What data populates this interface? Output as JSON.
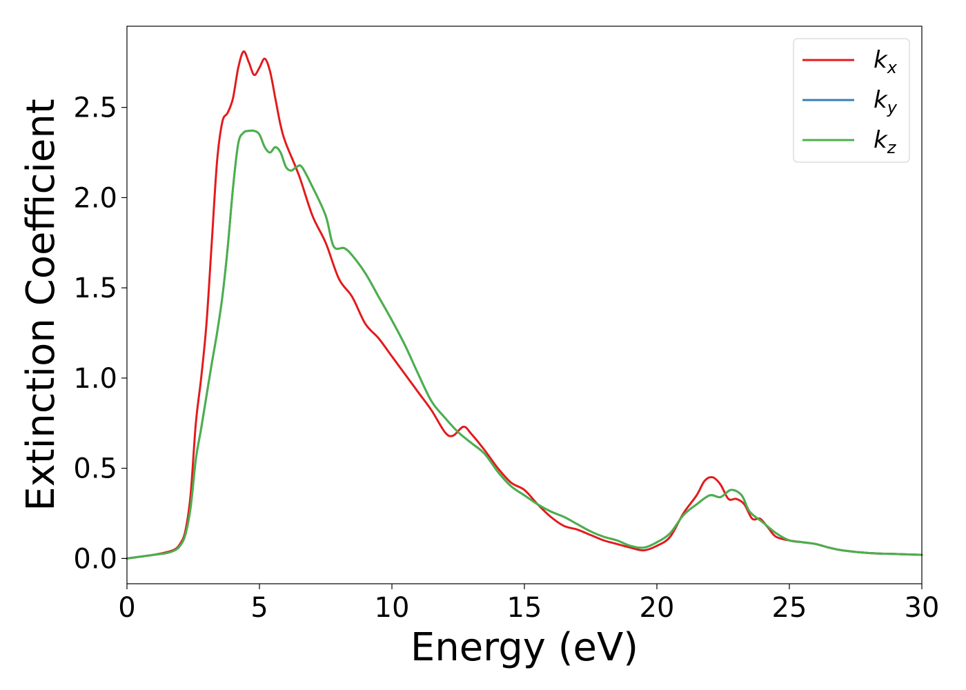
{
  "chart_data": {
    "type": "line",
    "xlabel": "Energy (eV)",
    "ylabel": "Extinction Coefficient",
    "xlim": [
      0,
      30
    ],
    "ylim": [
      -0.14,
      2.95
    ],
    "xticks": [
      "0",
      "5",
      "10",
      "15",
      "20",
      "25",
      "30"
    ],
    "xtick_values": [
      0,
      5,
      10,
      15,
      20,
      25,
      30
    ],
    "yticks": [
      "0.0",
      "0.5",
      "1.0",
      "1.5",
      "2.0",
      "2.5"
    ],
    "ytick_values": [
      0.0,
      0.5,
      1.0,
      1.5,
      2.0,
      2.5
    ],
    "grid": false,
    "legend_position": "top-right",
    "series": [
      {
        "name": "k",
        "subscript": "x",
        "color": "#e31a1c",
        "x": [
          0,
          0.5,
          1,
          1.5,
          1.8,
          2.0,
          2.2,
          2.4,
          2.6,
          2.8,
          3.0,
          3.2,
          3.4,
          3.6,
          3.8,
          4.0,
          4.2,
          4.4,
          4.6,
          4.8,
          5.0,
          5.2,
          5.4,
          5.6,
          5.8,
          6.0,
          6.5,
          7.0,
          7.5,
          8.0,
          8.5,
          9.0,
          9.5,
          10.0,
          10.5,
          11.0,
          11.5,
          12.0,
          12.3,
          12.7,
          13.0,
          13.5,
          14.0,
          14.5,
          15.0,
          15.5,
          16.0,
          16.5,
          17.0,
          17.5,
          18.0,
          18.5,
          19.0,
          19.5,
          20.0,
          20.5,
          21.0,
          21.5,
          21.8,
          22.1,
          22.4,
          22.7,
          23.0,
          23.3,
          23.6,
          23.9,
          24.2,
          24.5,
          25.0,
          25.5,
          26.0,
          26.5,
          27.0,
          28.0,
          29.0,
          30.0
        ],
        "y": [
          0.0,
          0.01,
          0.02,
          0.035,
          0.05,
          0.08,
          0.15,
          0.35,
          0.75,
          1.0,
          1.3,
          1.75,
          2.2,
          2.42,
          2.47,
          2.55,
          2.72,
          2.81,
          2.75,
          2.68,
          2.72,
          2.77,
          2.7,
          2.55,
          2.4,
          2.3,
          2.12,
          1.9,
          1.75,
          1.55,
          1.45,
          1.3,
          1.22,
          1.12,
          1.02,
          0.92,
          0.82,
          0.7,
          0.68,
          0.73,
          0.69,
          0.6,
          0.5,
          0.42,
          0.38,
          0.3,
          0.23,
          0.18,
          0.16,
          0.13,
          0.1,
          0.08,
          0.06,
          0.045,
          0.07,
          0.12,
          0.25,
          0.35,
          0.43,
          0.45,
          0.41,
          0.33,
          0.33,
          0.3,
          0.22,
          0.22,
          0.17,
          0.12,
          0.1,
          0.09,
          0.08,
          0.06,
          0.045,
          0.03,
          0.025,
          0.02
        ]
      },
      {
        "name": "k",
        "subscript": "y",
        "color": "#377eb8",
        "x": [
          0,
          0.5,
          1,
          1.5,
          1.8,
          2.0,
          2.2,
          2.4,
          2.6,
          2.8,
          3.0,
          3.2,
          3.4,
          3.6,
          3.8,
          4.0,
          4.2,
          4.4,
          4.6,
          4.8,
          5.0,
          5.2,
          5.4,
          5.6,
          5.8,
          6.0,
          6.2,
          6.4,
          6.6,
          7.0,
          7.5,
          7.8,
          8.2,
          8.5,
          9.0,
          9.5,
          10.0,
          10.5,
          11.0,
          11.5,
          12.0,
          12.5,
          13.0,
          13.5,
          14.0,
          14.5,
          15.0,
          15.5,
          16.0,
          16.5,
          17.0,
          17.5,
          18.0,
          18.5,
          19.0,
          19.5,
          20.0,
          20.5,
          21.0,
          21.5,
          22.0,
          22.4,
          22.8,
          23.2,
          23.5,
          24.0,
          24.5,
          25.0,
          25.5,
          26.0,
          26.5,
          27.0,
          28.0,
          29.0,
          30.0
        ],
        "y": [
          0.0,
          0.01,
          0.02,
          0.03,
          0.045,
          0.07,
          0.13,
          0.28,
          0.55,
          0.72,
          0.9,
          1.08,
          1.25,
          1.45,
          1.72,
          2.05,
          2.3,
          2.36,
          2.37,
          2.37,
          2.35,
          2.28,
          2.25,
          2.28,
          2.25,
          2.17,
          2.15,
          2.17,
          2.17,
          2.06,
          1.9,
          1.73,
          1.72,
          1.68,
          1.58,
          1.45,
          1.32,
          1.18,
          1.02,
          0.87,
          0.78,
          0.7,
          0.64,
          0.58,
          0.48,
          0.4,
          0.35,
          0.3,
          0.26,
          0.23,
          0.19,
          0.15,
          0.12,
          0.1,
          0.07,
          0.06,
          0.09,
          0.14,
          0.24,
          0.3,
          0.35,
          0.34,
          0.38,
          0.35,
          0.26,
          0.2,
          0.14,
          0.1,
          0.09,
          0.08,
          0.06,
          0.045,
          0.03,
          0.025,
          0.02
        ]
      },
      {
        "name": "k",
        "subscript": "z",
        "color": "#4daf4a",
        "x": [
          0,
          0.5,
          1,
          1.5,
          1.8,
          2.0,
          2.2,
          2.4,
          2.6,
          2.8,
          3.0,
          3.2,
          3.4,
          3.6,
          3.8,
          4.0,
          4.2,
          4.4,
          4.6,
          4.8,
          5.0,
          5.2,
          5.4,
          5.6,
          5.8,
          6.0,
          6.2,
          6.4,
          6.6,
          7.0,
          7.5,
          7.8,
          8.2,
          8.5,
          9.0,
          9.5,
          10.0,
          10.5,
          11.0,
          11.5,
          12.0,
          12.5,
          13.0,
          13.5,
          14.0,
          14.5,
          15.0,
          15.5,
          16.0,
          16.5,
          17.0,
          17.5,
          18.0,
          18.5,
          19.0,
          19.5,
          20.0,
          20.5,
          21.0,
          21.5,
          22.0,
          22.4,
          22.8,
          23.2,
          23.5,
          24.0,
          24.5,
          25.0,
          25.5,
          26.0,
          26.5,
          27.0,
          28.0,
          29.0,
          30.0
        ],
        "y": [
          0.0,
          0.01,
          0.02,
          0.03,
          0.045,
          0.07,
          0.13,
          0.28,
          0.55,
          0.72,
          0.9,
          1.08,
          1.25,
          1.45,
          1.72,
          2.05,
          2.3,
          2.36,
          2.37,
          2.37,
          2.35,
          2.28,
          2.25,
          2.28,
          2.25,
          2.17,
          2.15,
          2.17,
          2.17,
          2.06,
          1.9,
          1.73,
          1.72,
          1.68,
          1.58,
          1.45,
          1.32,
          1.18,
          1.02,
          0.87,
          0.78,
          0.7,
          0.64,
          0.58,
          0.48,
          0.4,
          0.35,
          0.3,
          0.26,
          0.23,
          0.19,
          0.15,
          0.12,
          0.1,
          0.07,
          0.06,
          0.09,
          0.14,
          0.24,
          0.3,
          0.35,
          0.34,
          0.38,
          0.35,
          0.26,
          0.2,
          0.14,
          0.1,
          0.09,
          0.08,
          0.06,
          0.045,
          0.03,
          0.025,
          0.02
        ]
      }
    ]
  }
}
